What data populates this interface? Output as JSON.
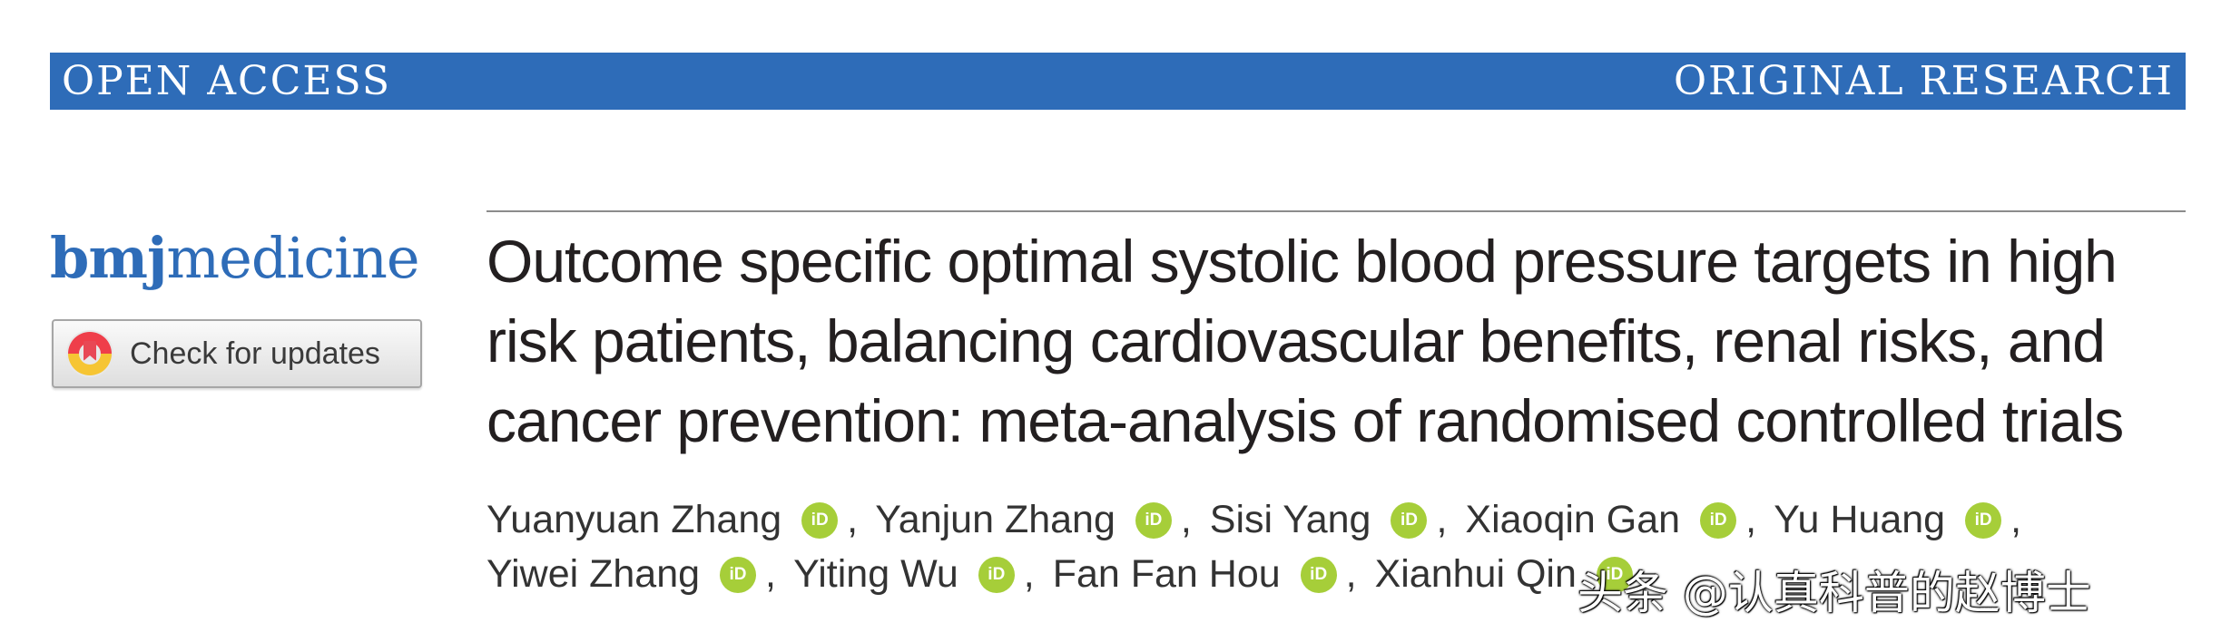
{
  "banner": {
    "left": "OPEN ACCESS",
    "right": "ORIGINAL RESEARCH"
  },
  "logo": {
    "bold_part": "bmj",
    "light_part": "medicine"
  },
  "check_updates": {
    "label": "Check for updates"
  },
  "title": "Outcome specific optimal systolic blood pressure targets in high risk patients, balancing cardiovascular benefits, renal risks, and cancer prevention: meta-analysis of randomised controlled trials",
  "orcid_label": "iD",
  "authors": {
    "line1": [
      "Yuanyuan Zhang",
      "Yanjun Zhang",
      "Sisi Yang",
      "Xiaoqin Gan",
      "Yu Huang"
    ],
    "line2": [
      "Yiwei Zhang",
      "Yiting Wu",
      "Fan Fan Hou",
      "Xianhui Qin"
    ],
    "separator": ","
  },
  "watermark": "头条 @认真科普的赵博士",
  "colors": {
    "banner": "#2e6cb8",
    "orcid": "#a6ce39",
    "title": "#231f20"
  }
}
